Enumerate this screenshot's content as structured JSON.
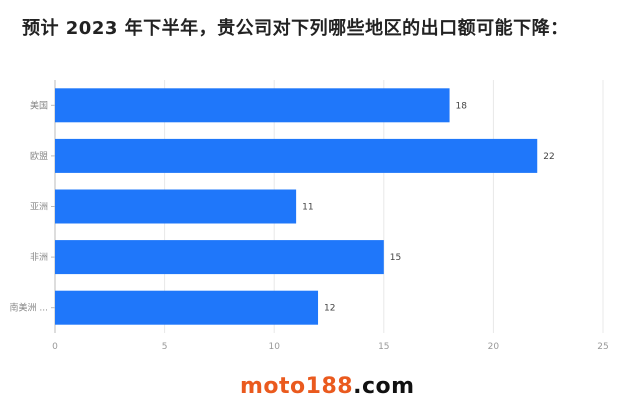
{
  "chart_data": {
    "type": "bar",
    "orientation": "horizontal",
    "title": "预计 2023 年下半年，贵公司对下列哪些地区的出口额可能下降：",
    "categories": [
      "美国",
      "欧盟",
      "亚洲",
      "非洲",
      "南美洲 ..."
    ],
    "values": [
      18,
      22,
      11,
      15,
      12
    ],
    "xlim": [
      0,
      25
    ],
    "xticks": [
      "0",
      "5",
      "10",
      "15",
      "20",
      "25"
    ],
    "grid": true,
    "bar_color": "#1f77fa"
  },
  "watermark": {
    "part1": "moto188",
    "part2": ".com"
  }
}
